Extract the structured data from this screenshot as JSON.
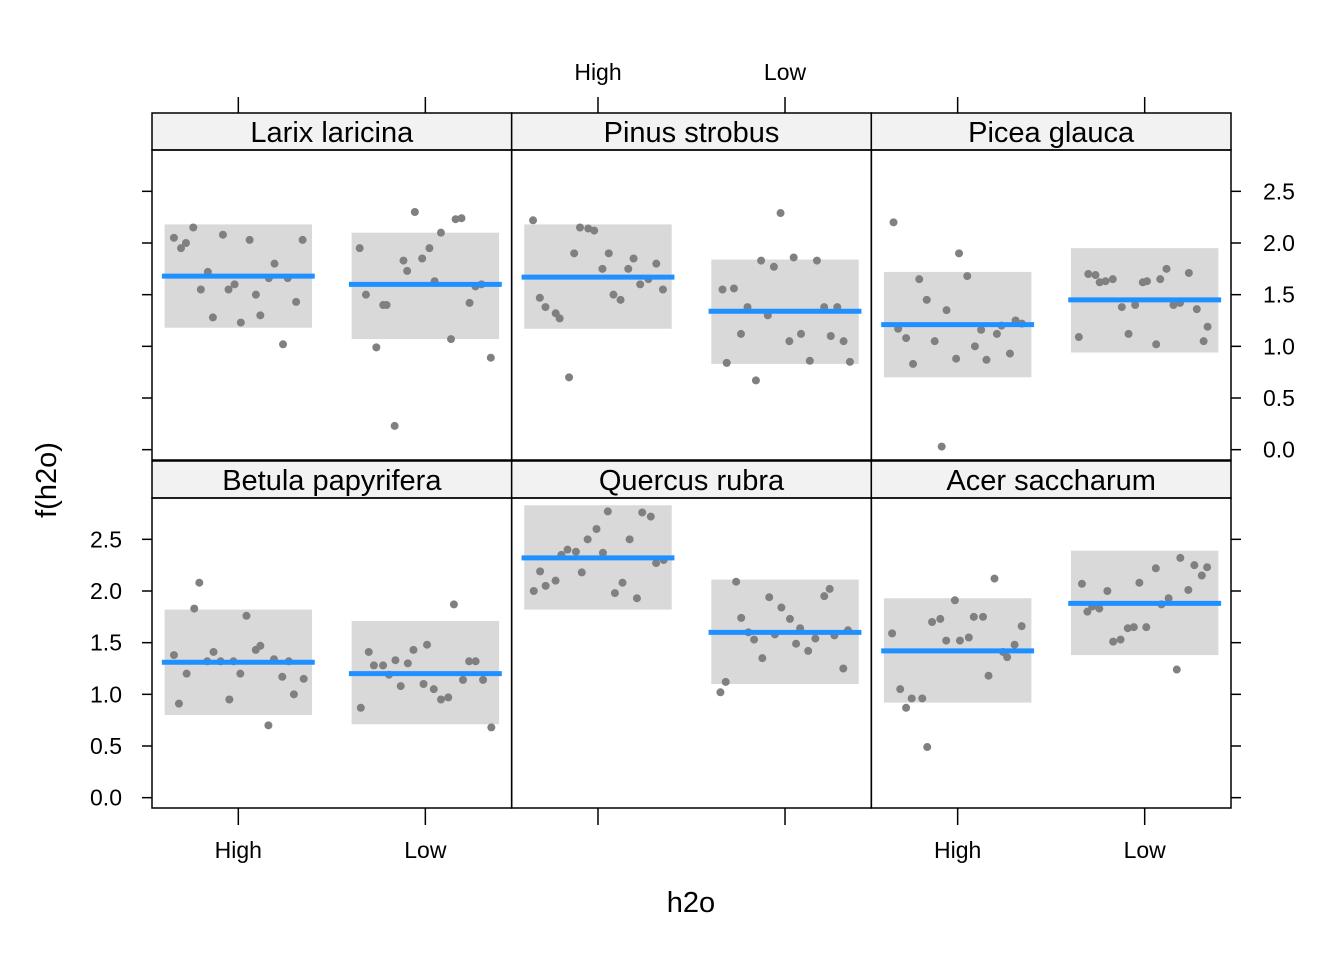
{
  "chart_data": {
    "type": "scatter",
    "xlabel": "h2o",
    "ylabel": "f(h2o)",
    "x_categories": [
      "High",
      "Low"
    ],
    "ylim": [
      -0.1,
      2.9
    ],
    "y_ticks": [
      "0.0",
      "0.5",
      "1.0",
      "1.5",
      "2.0",
      "2.5"
    ],
    "grid": false,
    "colors": {
      "fit_line": "#1e90ff",
      "band": "#d9d9d9",
      "points": "#808080",
      "strip_bg": "#f2f2f2"
    },
    "panels": [
      {
        "species": "Larix laricina",
        "levels": [
          {
            "level": "High",
            "fit": 1.68,
            "lower": 1.18,
            "upper": 2.18,
            "points": [
              2.05,
              1.95,
              2.0,
              2.15,
              1.55,
              1.72,
              1.28,
              2.08,
              1.55,
              1.6,
              1.23,
              2.03,
              1.5,
              1.3,
              1.66,
              1.8,
              1.02,
              1.66,
              1.43,
              2.03
            ]
          },
          {
            "level": "Low",
            "fit": 1.6,
            "lower": 1.07,
            "upper": 2.1,
            "points": [
              1.95,
              1.5,
              0.99,
              1.4,
              1.4,
              0.23,
              1.83,
              1.73,
              2.3,
              1.85,
              1.95,
              1.63,
              2.1,
              1.07,
              2.23,
              2.24,
              1.42,
              1.58,
              1.6,
              0.89
            ]
          }
        ]
      },
      {
        "species": "Pinus strobus",
        "levels": [
          {
            "level": "High",
            "fit": 1.67,
            "lower": 1.17,
            "upper": 2.18,
            "points": [
              2.22,
              1.47,
              1.38,
              1.32,
              1.27,
              0.7,
              1.9,
              2.15,
              2.14,
              2.12,
              1.75,
              1.9,
              1.5,
              1.45,
              1.75,
              1.85,
              1.6,
              1.65,
              1.8,
              1.55
            ]
          },
          {
            "level": "Low",
            "fit": 1.34,
            "lower": 0.83,
            "upper": 1.84,
            "points": [
              1.55,
              0.84,
              1.56,
              1.12,
              1.38,
              0.67,
              1.83,
              1.3,
              1.77,
              2.29,
              1.05,
              1.86,
              1.12,
              0.86,
              1.83,
              1.38,
              1.1,
              1.38,
              1.05,
              0.85
            ]
          }
        ]
      },
      {
        "species": "Picea glauca",
        "levels": [
          {
            "level": "High",
            "fit": 1.21,
            "lower": 0.7,
            "upper": 1.72,
            "points": [
              2.2,
              1.17,
              1.08,
              0.83,
              1.65,
              1.45,
              1.05,
              0.03,
              1.35,
              0.88,
              1.9,
              1.68,
              1.0,
              1.16,
              0.87,
              1.12,
              1.2,
              0.93,
              1.25,
              1.22
            ]
          },
          {
            "level": "Low",
            "fit": 1.45,
            "lower": 0.94,
            "upper": 1.95,
            "points": [
              1.09,
              1.7,
              1.69,
              1.62,
              1.63,
              1.65,
              1.38,
              1.12,
              1.4,
              1.62,
              1.63,
              1.02,
              1.65,
              1.75,
              1.4,
              1.42,
              1.71,
              1.36,
              1.05,
              1.19
            ]
          }
        ]
      },
      {
        "species": "Betula papyrifera",
        "levels": [
          {
            "level": "High",
            "fit": 1.31,
            "lower": 0.8,
            "upper": 1.82,
            "points": [
              1.38,
              0.91,
              1.2,
              1.83,
              2.08,
              1.32,
              1.41,
              1.32,
              0.95,
              1.32,
              1.2,
              1.76,
              1.43,
              1.47,
              0.7,
              1.34,
              1.17,
              1.32,
              1.0,
              1.15
            ]
          },
          {
            "level": "Low",
            "fit": 1.2,
            "lower": 0.71,
            "upper": 1.71,
            "points": [
              0.87,
              1.41,
              1.28,
              1.28,
              1.19,
              1.33,
              1.08,
              1.3,
              1.43,
              1.1,
              1.48,
              1.05,
              0.95,
              0.97,
              1.87,
              1.14,
              1.32,
              1.32,
              1.14,
              0.68
            ]
          }
        ]
      },
      {
        "species": "Quercus rubra",
        "levels": [
          {
            "level": "High",
            "fit": 2.32,
            "lower": 1.82,
            "upper": 2.83,
            "points": [
              2.0,
              2.19,
              2.05,
              2.1,
              2.35,
              2.4,
              2.38,
              2.18,
              2.5,
              2.6,
              2.37,
              2.77,
              1.98,
              2.08,
              2.5,
              1.93,
              2.76,
              2.72,
              2.27,
              2.3
            ]
          },
          {
            "level": "Low",
            "fit": 1.6,
            "lower": 1.1,
            "upper": 2.11,
            "points": [
              1.02,
              1.12,
              2.09,
              1.74,
              1.6,
              1.53,
              1.35,
              1.94,
              1.58,
              1.84,
              1.73,
              1.49,
              1.64,
              1.42,
              1.54,
              1.95,
              2.02,
              1.57,
              1.25,
              1.62
            ]
          }
        ]
      },
      {
        "species": "Acer saccharum",
        "levels": [
          {
            "level": "High",
            "fit": 1.42,
            "lower": 0.92,
            "upper": 1.93,
            "points": [
              1.59,
              1.05,
              0.87,
              0.96,
              0.96,
              0.49,
              1.7,
              1.73,
              1.52,
              1.91,
              1.52,
              1.55,
              1.75,
              1.75,
              1.18,
              2.12,
              1.41,
              1.36,
              1.48,
              1.66
            ]
          },
          {
            "level": "Low",
            "fit": 1.88,
            "lower": 1.38,
            "upper": 2.39,
            "points": [
              2.07,
              1.8,
              1.85,
              1.83,
              2.0,
              1.51,
              1.53,
              1.64,
              1.65,
              2.08,
              1.65,
              2.22,
              1.87,
              1.93,
              1.24,
              2.32,
              2.01,
              2.25,
              2.15,
              2.23
            ]
          }
        ]
      }
    ]
  }
}
